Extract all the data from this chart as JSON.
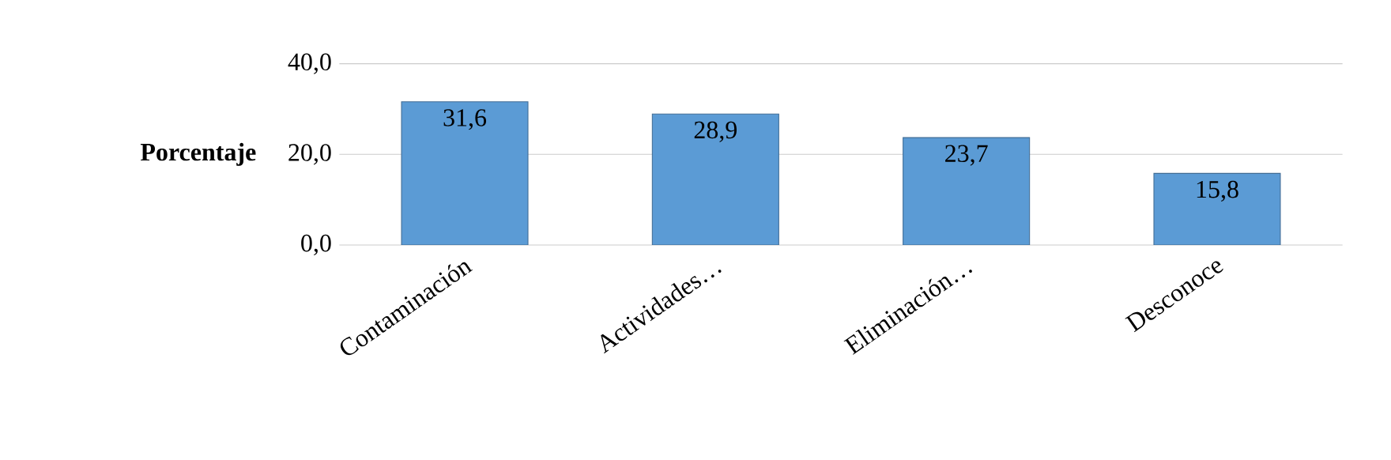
{
  "chart_data": {
    "type": "bar",
    "ylabel": "Porcentaje",
    "categories": [
      "Contaminación",
      "Actividades…",
      "Eliminación…",
      "Desconoce"
    ],
    "values": [
      31.6,
      28.9,
      23.7,
      15.8
    ],
    "value_labels": [
      "31,6",
      "28,9",
      "23,7",
      "15,8"
    ],
    "color": "#5b9bd5",
    "ylim": [
      0,
      40
    ],
    "yticks": [
      {
        "value": 0,
        "label": "0,0"
      },
      {
        "value": 20,
        "label": "20,0"
      },
      {
        "value": 40,
        "label": "40,0"
      }
    ],
    "grid": "y"
  }
}
